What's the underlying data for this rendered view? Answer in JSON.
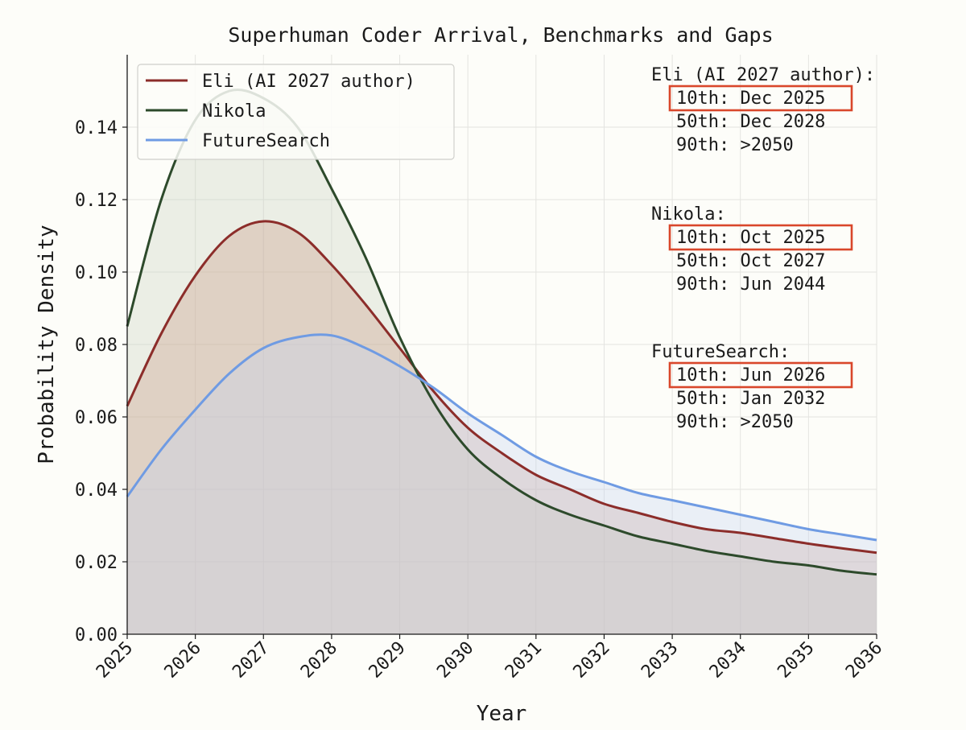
{
  "chart_data": {
    "type": "area",
    "title": "Superhuman Coder Arrival, Benchmarks and Gaps",
    "xlabel": "Year",
    "ylabel": "Probability Density",
    "xlim": [
      2025,
      2036
    ],
    "ylim": [
      0,
      0.16
    ],
    "grid": true,
    "legend_position": "top-left",
    "x_ticks": [
      "2025",
      "2026",
      "2027",
      "2028",
      "2029",
      "2030",
      "2031",
      "2032",
      "2033",
      "2034",
      "2035",
      "2036"
    ],
    "y_ticks": [
      "0.00",
      "0.02",
      "0.04",
      "0.06",
      "0.08",
      "0.10",
      "0.12",
      "0.14"
    ],
    "x": [
      2025,
      2025.5,
      2026,
      2026.5,
      2027,
      2027.5,
      2028,
      2028.5,
      2029,
      2029.5,
      2030,
      2030.5,
      2031,
      2031.5,
      2032,
      2032.5,
      2033,
      2033.5,
      2034,
      2034.5,
      2035,
      2035.5,
      2036
    ],
    "series": [
      {
        "name": "Eli (AI 2027 author)",
        "color": "#8c2d2a",
        "fill": "#c89a86",
        "values": [
          0.063,
          0.083,
          0.099,
          0.11,
          0.114,
          0.111,
          0.102,
          0.091,
          0.079,
          0.067,
          0.057,
          0.05,
          0.044,
          0.04,
          0.036,
          0.0335,
          0.031,
          0.029,
          0.028,
          0.0265,
          0.025,
          0.0237,
          0.0225
        ]
      },
      {
        "name": "Nikola",
        "color": "#2d4a2b",
        "fill": "#c9d2bf",
        "values": [
          0.085,
          0.12,
          0.142,
          0.15,
          0.148,
          0.14,
          0.123,
          0.104,
          0.082,
          0.064,
          0.051,
          0.043,
          0.037,
          0.033,
          0.03,
          0.027,
          0.025,
          0.023,
          0.0215,
          0.02,
          0.019,
          0.0175,
          0.0165
        ]
      },
      {
        "name": "FutureSearch",
        "color": "#6f9be3",
        "fill": "#c5d5f0",
        "values": [
          0.038,
          0.051,
          0.062,
          0.072,
          0.079,
          0.082,
          0.0825,
          0.079,
          0.074,
          0.068,
          0.061,
          0.055,
          0.049,
          0.045,
          0.042,
          0.039,
          0.037,
          0.035,
          0.033,
          0.031,
          0.029,
          0.0275,
          0.026
        ]
      }
    ],
    "annotations": [
      {
        "header": "Eli (AI 2027 author):",
        "lines": [
          "10th: Dec 2025",
          "50th: Dec 2028",
          "90th: >2050"
        ],
        "highlight": "10th: Dec 2025"
      },
      {
        "header": "Nikola:",
        "lines": [
          "10th: Oct 2025",
          "50th: Oct 2027",
          "90th: Jun 2044"
        ],
        "highlight": "10th: Oct 2025"
      },
      {
        "header": "FutureSearch:",
        "lines": [
          "10th: Jun 2026",
          "50th: Jan 2032",
          "90th: >2050"
        ],
        "highlight": "10th: Jun 2026"
      }
    ],
    "highlight_color": "#d9472b"
  }
}
